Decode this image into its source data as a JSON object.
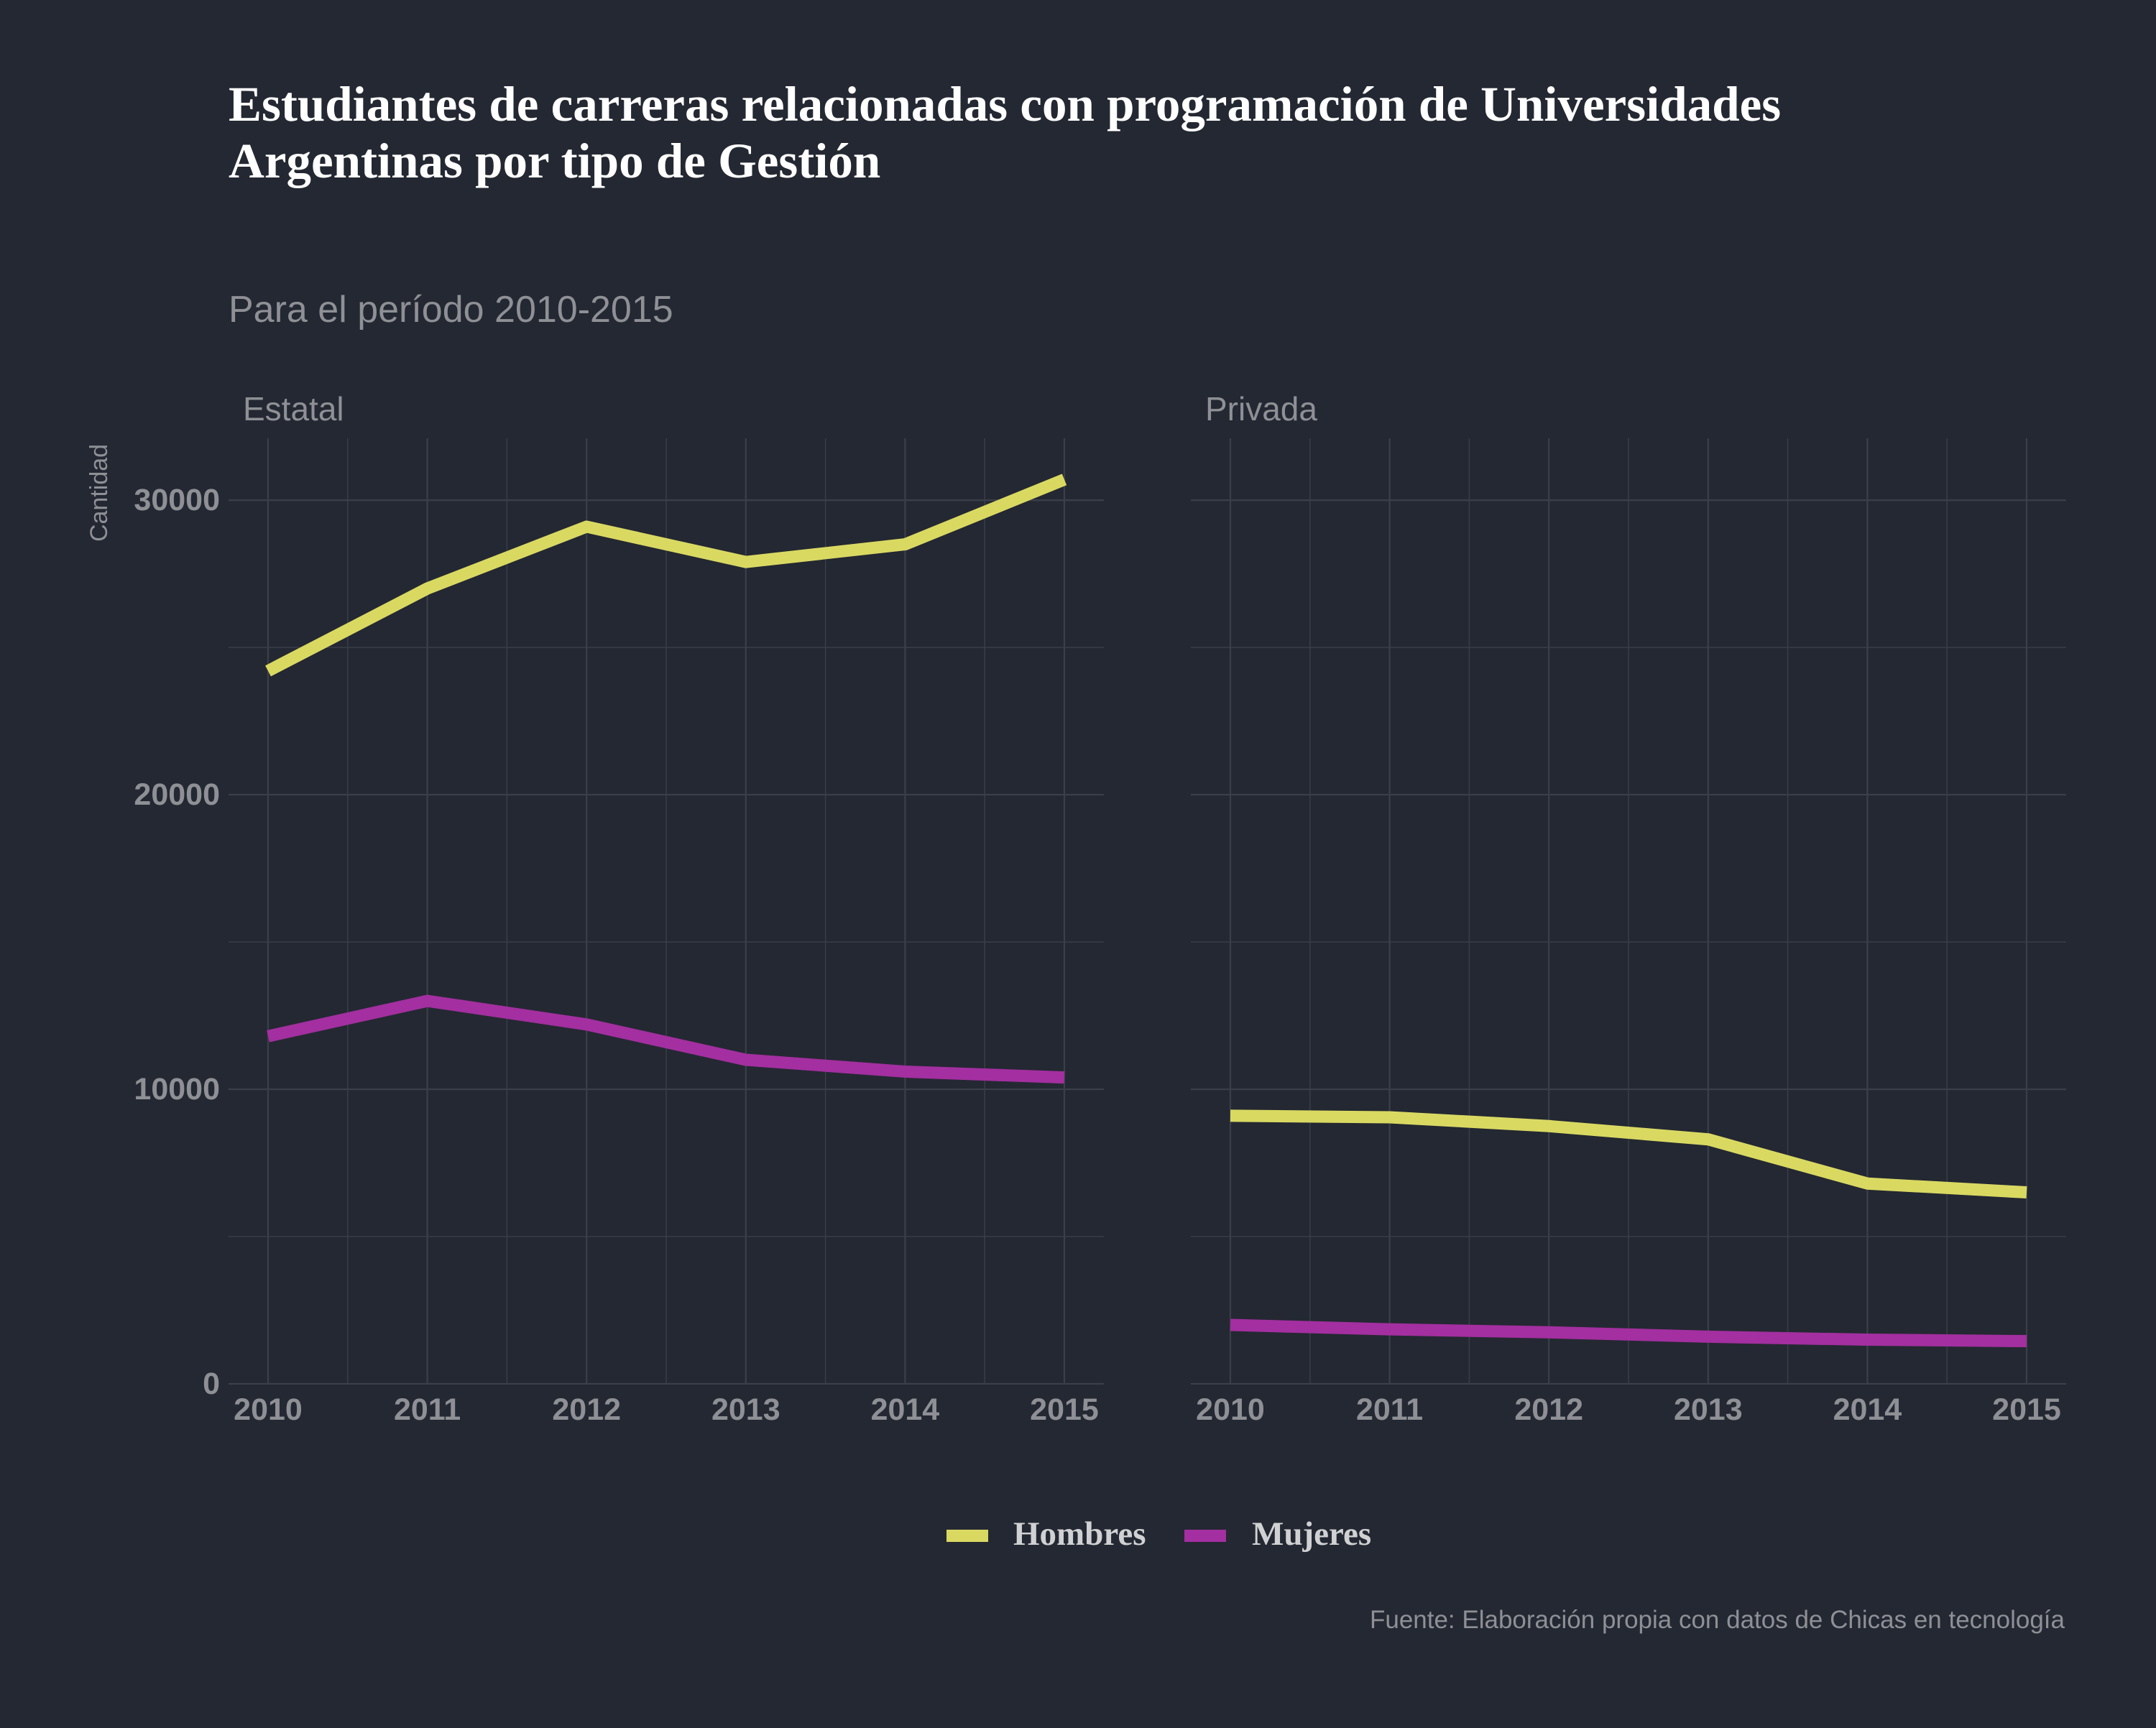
{
  "colors": {
    "background": "#242832",
    "grid": "#3a3f49",
    "muted_text": "#8e9096",
    "title_text": "#ffffff",
    "legend_text": "#d0d1d3",
    "hombres": "#d9d962",
    "mujeres": "#a32fa0"
  },
  "chart_data": {
    "type": "line",
    "title_lines": [
      "Estudiantes de carreras relacionadas con programación de Universidades",
      "Argentinas por tipo de Gestión"
    ],
    "subtitle": "Para el período 2010-2015",
    "ylabel": "Cantidad",
    "xlabel": "",
    "caption": "Fuente: Elaboración propia con datos de Chicas en tecnología",
    "x": [
      2010,
      2011,
      2012,
      2013,
      2014,
      2015
    ],
    "x_tick_labels": [
      "2010",
      "2011",
      "2012",
      "2013",
      "2014",
      "2015"
    ],
    "ylim": [
      0,
      32100
    ],
    "y_ticks": [
      0,
      10000,
      20000,
      30000
    ],
    "y_tick_labels": [
      "0",
      "10000",
      "20000",
      "30000"
    ],
    "grid": true,
    "legend_position": "bottom",
    "legend": [
      {
        "name": "Hombres",
        "color_key": "hombres"
      },
      {
        "name": "Mujeres",
        "color_key": "mujeres"
      }
    ],
    "panels": [
      {
        "name": "Estatal",
        "series": [
          {
            "name": "Hombres",
            "values": [
              24200,
              27000,
              29100,
              27900,
              28500,
              30700
            ]
          },
          {
            "name": "Mujeres",
            "values": [
              11800,
              13000,
              12200,
              11000,
              10600,
              10400
            ]
          }
        ]
      },
      {
        "name": "Privada",
        "series": [
          {
            "name": "Hombres",
            "values": [
              9100,
              9050,
              8750,
              8300,
              6800,
              6500
            ]
          },
          {
            "name": "Mujeres",
            "values": [
              2000,
              1850,
              1750,
              1600,
              1500,
              1450
            ]
          }
        ]
      }
    ]
  }
}
